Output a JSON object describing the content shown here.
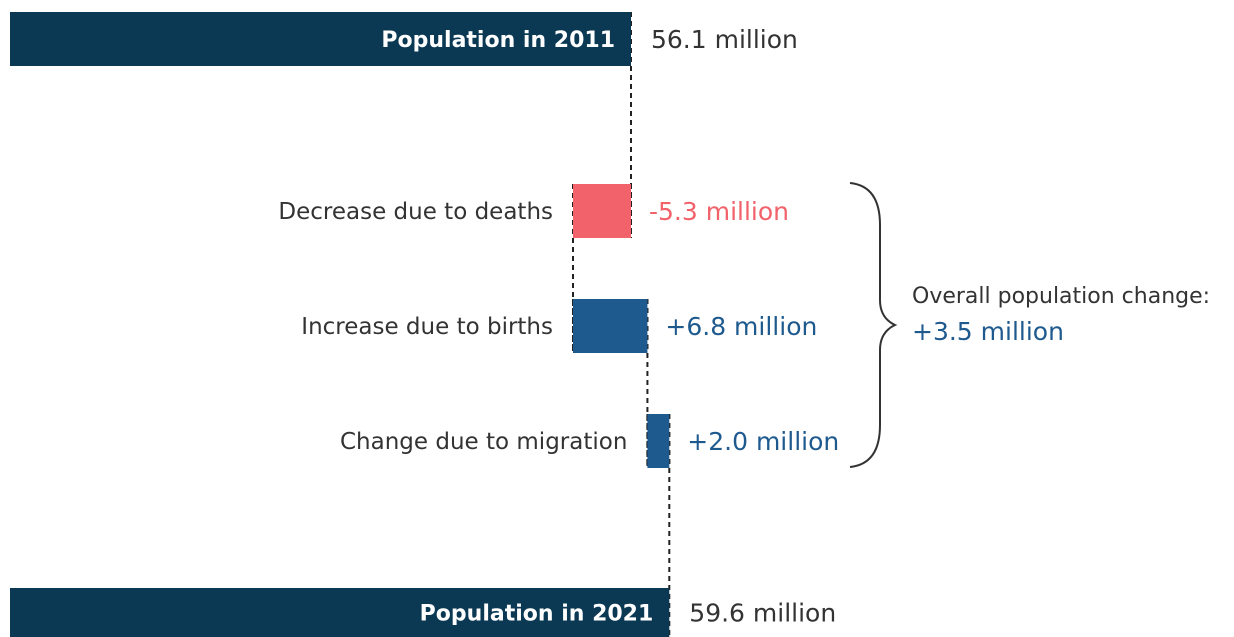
{
  "chart_data": {
    "type": "bar",
    "subtype": "waterfall",
    "unit": "million",
    "categories": [
      "Population in 2011",
      "Decrease due to deaths",
      "Increase due to births",
      "Change due to migration",
      "Population in 2021"
    ],
    "values": [
      56.1,
      -5.3,
      6.8,
      2.0,
      59.6
    ],
    "kinds": [
      "total",
      "change",
      "change",
      "change",
      "total"
    ],
    "value_labels": [
      "56.1 million",
      "-5.3 million",
      "+6.8 million",
      "+2.0 million",
      "59.6 million"
    ],
    "summary": {
      "label": "Overall population change:",
      "value": "+3.5 million"
    },
    "colors": {
      "total": "#0b3954",
      "decrease": "#f2626b",
      "increase": "#1f5a8f",
      "total_text": "#333333"
    },
    "grid": false,
    "legend": "none"
  }
}
